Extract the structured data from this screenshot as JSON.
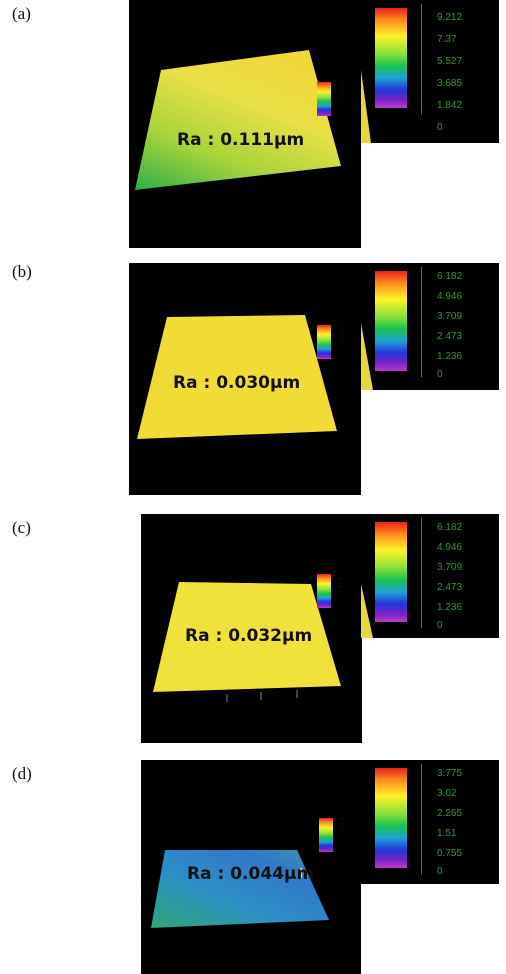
{
  "panels": [
    {
      "label": "(a)",
      "ra_text": "Ra : 0.111µm",
      "scale_values": [
        "9.212",
        "7.37",
        "5.527",
        "3.685",
        "1.842",
        "0"
      ],
      "surface_color": "#e2e045"
    },
    {
      "label": "(b)",
      "ra_text": "Ra : 0.030µm",
      "scale_values": [
        "6.182",
        "4.946",
        "3.709",
        "2.473",
        "1.236",
        "0"
      ],
      "surface_color": "#f2dc30"
    },
    {
      "label": "(c)",
      "ra_text": "Ra : 0.032µm",
      "scale_values": [
        "6.182",
        "4.946",
        "3.709",
        "2.473",
        "1.236",
        "0"
      ],
      "surface_color": "#f0e23a"
    },
    {
      "label": "(d)",
      "ra_text": "Ra : 0.044µm",
      "scale_values": [
        "3.775",
        "3.02",
        "2.265",
        "1.51",
        "0.755",
        "0"
      ],
      "surface_color": "#2b8fc0"
    }
  ]
}
